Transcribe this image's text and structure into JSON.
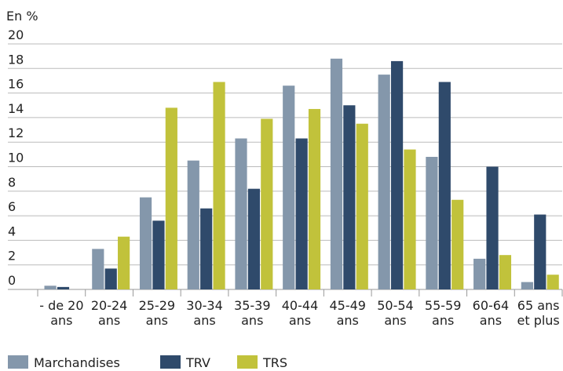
{
  "chart_data": {
    "type": "bar",
    "y_label": "En %",
    "categories": [
      [
        "- de 20",
        "ans"
      ],
      [
        "20-24",
        "ans"
      ],
      [
        "25-29",
        "ans"
      ],
      [
        "30-34",
        "ans"
      ],
      [
        "35-39",
        "ans"
      ],
      [
        "40-44",
        "ans"
      ],
      [
        "45-49",
        "ans"
      ],
      [
        "50-54",
        "ans"
      ],
      [
        "55-59",
        "ans"
      ],
      [
        "60-64",
        "ans"
      ],
      [
        "65 ans",
        "et plus"
      ]
    ],
    "series": [
      {
        "name": "Marchandises",
        "color": "#8497ab",
        "values": [
          0.3,
          3.3,
          7.5,
          10.5,
          12.3,
          16.6,
          18.8,
          17.5,
          10.8,
          2.5,
          0.6
        ]
      },
      {
        "name": "TRV",
        "color": "#2f4a6b",
        "values": [
          0.2,
          1.7,
          5.6,
          6.6,
          8.2,
          12.3,
          15.0,
          18.6,
          16.9,
          10.0,
          6.1
        ]
      },
      {
        "name": "TRS",
        "color": "#c1c23b",
        "values": [
          0,
          4.3,
          14.8,
          16.9,
          13.9,
          14.7,
          13.5,
          11.4,
          7.3,
          2.8,
          1.2
        ]
      }
    ],
    "ylim": [
      0,
      20
    ],
    "yticks": [
      0,
      2,
      4,
      6,
      8,
      10,
      12,
      14,
      16,
      18,
      20
    ],
    "grid": true
  }
}
